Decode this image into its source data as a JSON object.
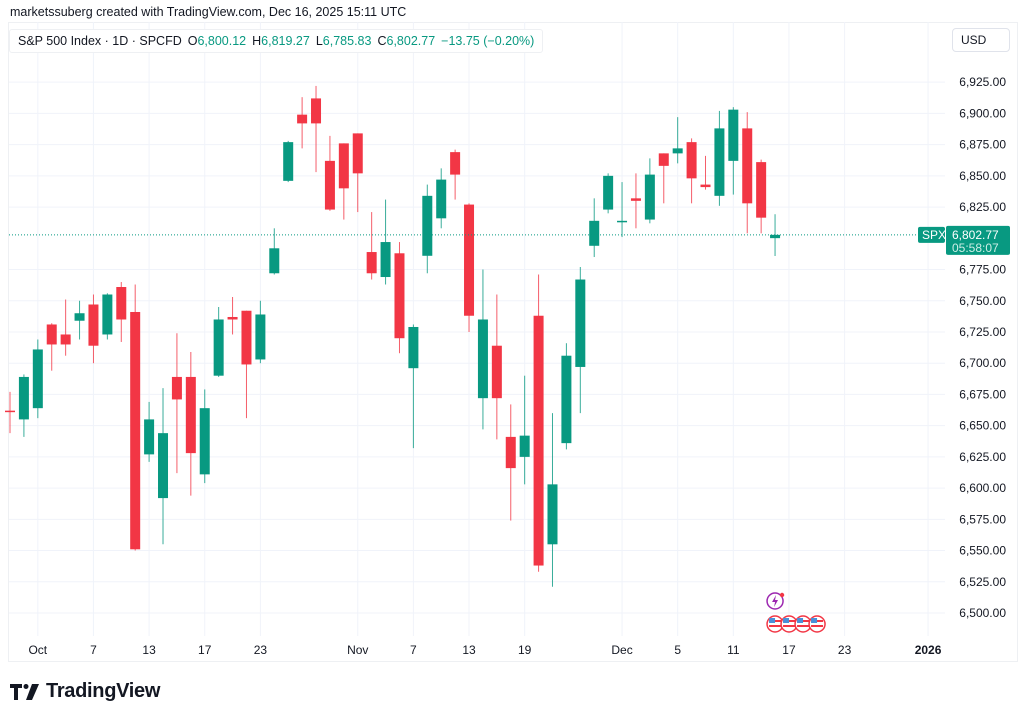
{
  "attribution": "marketssuberg created with TradingView.com, Dec 16, 2025 15:11 UTC",
  "legend": {
    "symbol": "S&P 500 Index · 1D · SPCFD",
    "open_label": "O",
    "open": "6,800.12",
    "high_label": "H",
    "high": "6,819.27",
    "low_label": "L",
    "low": "6,785.83",
    "close_label": "C",
    "close": "6,802.77",
    "change": "−13.75 (−0.20%)"
  },
  "currency": "USD",
  "price_label": {
    "symbol": "SPX",
    "price": "6,802.77",
    "countdown": "05:58:07"
  },
  "footer": {
    "brand": "TradingView",
    "logo_icon": "tradingview-logo-icon"
  },
  "colors": {
    "up": "#089981",
    "down": "#F23645",
    "grid": "#f0f3fa",
    "event": "#9c27b0"
  },
  "events": [
    {
      "icon": "lightning-icon"
    },
    {
      "icon": "us-flag-icon"
    },
    {
      "icon": "us-flag-icon"
    },
    {
      "icon": "us-flag-icon"
    },
    {
      "icon": "us-flag-icon"
    }
  ],
  "chart_data": {
    "type": "candlestick",
    "ylim": [
      6480,
      6950
    ],
    "grid": true,
    "y_ticks": [
      "6,500.00",
      "6,525.00",
      "6,550.00",
      "6,575.00",
      "6,600.00",
      "6,625.00",
      "6,650.00",
      "6,675.00",
      "6,700.00",
      "6,725.00",
      "6,750.00",
      "6,775.00",
      "6,825.00",
      "6,850.00",
      "6,875.00",
      "6,900.00",
      "6,925.00"
    ],
    "y_tick_values": [
      6500,
      6525,
      6550,
      6575,
      6600,
      6625,
      6650,
      6675,
      6700,
      6725,
      6750,
      6775,
      6825,
      6850,
      6875,
      6900,
      6925
    ],
    "x_ticks": [
      {
        "label": "Oct",
        "date": "2025-10-01"
      },
      {
        "label": "7",
        "date": "2025-10-07"
      },
      {
        "label": "13",
        "date": "2025-10-13"
      },
      {
        "label": "17",
        "date": "2025-10-17"
      },
      {
        "label": "23",
        "date": "2025-10-23"
      },
      {
        "label": "Nov",
        "date": "2025-11-03"
      },
      {
        "label": "7",
        "date": "2025-11-07"
      },
      {
        "label": "13",
        "date": "2025-11-13"
      },
      {
        "label": "19",
        "date": "2025-11-19"
      },
      {
        "label": "Dec",
        "date": "2025-12-01"
      },
      {
        "label": "5",
        "date": "2025-12-05"
      },
      {
        "label": "11",
        "date": "2025-12-11"
      },
      {
        "label": "17",
        "date": "2025-12-17"
      },
      {
        "label": "23",
        "date": "2025-12-23"
      },
      {
        "label": "2026",
        "date": "2026-01-02",
        "year": true
      }
    ],
    "last_price": 6802.77,
    "columns": [
      "date",
      "open",
      "high",
      "low",
      "close"
    ],
    "candles": [
      [
        "2025-09-29",
        6662,
        6677,
        6644,
        6661
      ],
      [
        "2025-09-30",
        6655,
        6691,
        6641,
        6689
      ],
      [
        "2025-10-01",
        6664,
        6719,
        6656,
        6711
      ],
      [
        "2025-10-02",
        6731,
        6732,
        6694,
        6715
      ],
      [
        "2025-10-03",
        6723,
        6751,
        6706,
        6715
      ],
      [
        "2025-10-06",
        6734,
        6750,
        6719,
        6740
      ],
      [
        "2025-10-07",
        6747,
        6755,
        6700,
        6714
      ],
      [
        "2025-10-08",
        6723,
        6756,
        6719,
        6755
      ],
      [
        "2025-10-09",
        6761,
        6765,
        6717,
        6735
      ],
      [
        "2025-10-10",
        6741,
        6763,
        6550,
        6551
      ],
      [
        "2025-10-13",
        6627,
        6669,
        6621,
        6655
      ],
      [
        "2025-10-14",
        6592,
        6680,
        6555,
        6644
      ],
      [
        "2025-10-15",
        6689,
        6724,
        6612,
        6671
      ],
      [
        "2025-10-16",
        6689,
        6709,
        6594,
        6628
      ],
      [
        "2025-10-17",
        6611,
        6679,
        6604,
        6664
      ],
      [
        "2025-10-20",
        6690,
        6745,
        6689,
        6735
      ],
      [
        "2025-10-21",
        6737,
        6753,
        6723,
        6735
      ],
      [
        "2025-10-22",
        6742,
        6742,
        6656,
        6699
      ],
      [
        "2025-10-23",
        6703,
        6750,
        6700,
        6739
      ],
      [
        "2025-10-24",
        6772,
        6808,
        6771,
        6792
      ],
      [
        "2025-10-27",
        6846,
        6878,
        6845,
        6877
      ],
      [
        "2025-10-28",
        6899,
        6913,
        6872,
        6892
      ],
      [
        "2025-10-29",
        6912,
        6922,
        6853,
        6892
      ],
      [
        "2025-10-30",
        6862,
        6882,
        6822,
        6823
      ],
      [
        "2025-10-31",
        6876,
        6876,
        6815,
        6840
      ],
      [
        "2025-11-03",
        6884,
        6884,
        6821,
        6852
      ],
      [
        "2025-11-04",
        6789,
        6821,
        6767,
        6772
      ],
      [
        "2025-11-05",
        6769,
        6831,
        6763,
        6797
      ],
      [
        "2025-11-06",
        6788,
        6797,
        6708,
        6720
      ],
      [
        "2025-11-07",
        6696,
        6731,
        6632,
        6729
      ],
      [
        "2025-11-10",
        6786,
        6843,
        6772,
        6834
      ],
      [
        "2025-11-11",
        6816,
        6856,
        6808,
        6847
      ],
      [
        "2025-11-12",
        6869,
        6871,
        6831,
        6851
      ],
      [
        "2025-11-13",
        6827,
        6828,
        6725,
        6738
      ],
      [
        "2025-11-14",
        6672,
        6775,
        6647,
        6735
      ],
      [
        "2025-11-17",
        6714,
        6755,
        6639,
        6672
      ],
      [
        "2025-11-18",
        6641,
        6667,
        6574,
        6616
      ],
      [
        "2025-11-19",
        6625,
        6690,
        6603,
        6642
      ],
      [
        "2025-11-20",
        6738,
        6771,
        6533,
        6538
      ],
      [
        "2025-11-21",
        6555,
        6660,
        6521,
        6603
      ],
      [
        "2025-11-24",
        6636,
        6716,
        6631,
        6706
      ],
      [
        "2025-11-25",
        6697,
        6777,
        6660,
        6767
      ],
      [
        "2025-11-26",
        6794,
        6832,
        6785,
        6814
      ],
      [
        "2025-11-28",
        6823,
        6852,
        6820,
        6850
      ],
      [
        "2025-12-01",
        6813,
        6845,
        6801,
        6814
      ],
      [
        "2025-12-02",
        6832,
        6852,
        6808,
        6830
      ],
      [
        "2025-12-03",
        6815,
        6864,
        6812,
        6851
      ],
      [
        "2025-12-04",
        6868,
        6868,
        6828,
        6858
      ],
      [
        "2025-12-05",
        6868,
        6897,
        6860,
        6872
      ],
      [
        "2025-12-08",
        6877,
        6880,
        6828,
        6848
      ],
      [
        "2025-12-09",
        6843,
        6866,
        6839,
        6841
      ],
      [
        "2025-12-10",
        6834,
        6902,
        6826,
        6888
      ],
      [
        "2025-12-11",
        6862,
        6905,
        6835,
        6903
      ],
      [
        "2025-12-12",
        6888,
        6901,
        6804,
        6828
      ],
      [
        "2025-12-15",
        6861,
        6863,
        6804,
        6816.52
      ],
      [
        "2025-12-16",
        6800.12,
        6819.27,
        6785.83,
        6802.77
      ]
    ]
  }
}
